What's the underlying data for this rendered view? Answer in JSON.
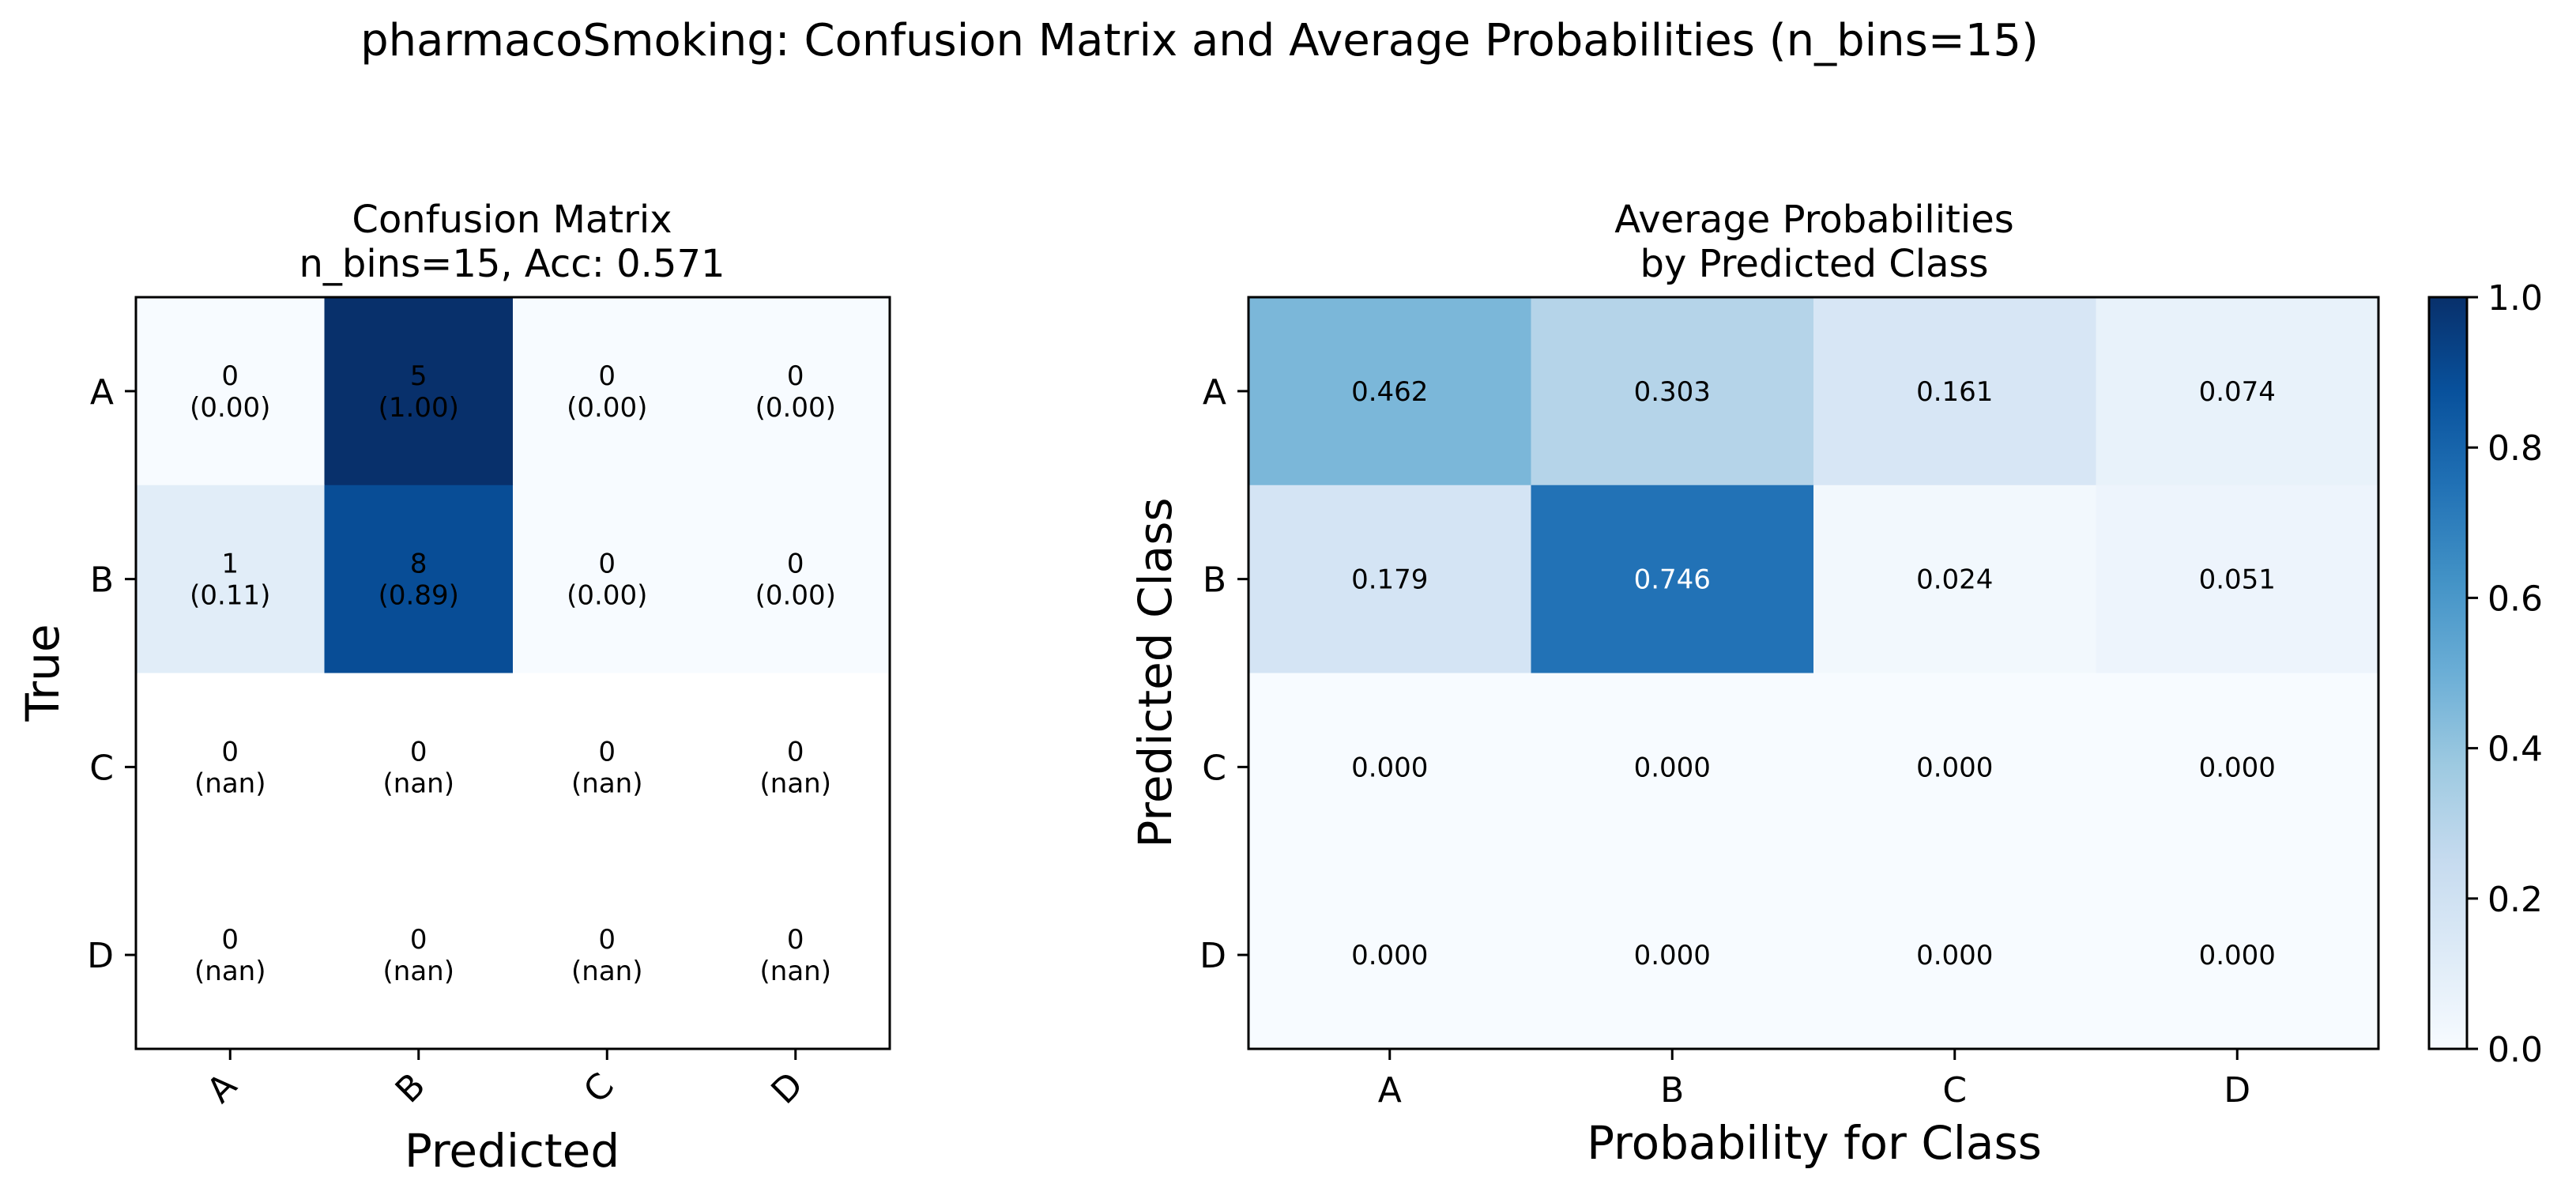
{
  "suptitle": "pharmacoSmoking: Confusion Matrix and Average Probabilities (n_bins=15)",
  "colors": {
    "colormap": "Blues",
    "cmap_low": "#f7fbff",
    "cmap_high": "#08306b",
    "dark_text_threshold": 0.5,
    "text_light": "#ffffff",
    "text_dark": "#000000"
  },
  "chart_data": [
    {
      "type": "heatmap",
      "title_line1": "Confusion Matrix",
      "title_line2": "n_bins=15, Acc: 0.571",
      "xlabel": "Predicted",
      "ylabel": "True",
      "x_categories": [
        "A",
        "B",
        "C",
        "D"
      ],
      "y_categories": [
        "A",
        "B",
        "C",
        "D"
      ],
      "x_tick_rotation": "45 degrees",
      "counts": [
        [
          0,
          5,
          0,
          0
        ],
        [
          1,
          8,
          0,
          0
        ],
        [
          0,
          0,
          0,
          0
        ],
        [
          0,
          0,
          0,
          0
        ]
      ],
      "normalized_labels": [
        [
          "0.00",
          "1.00",
          "0.00",
          "0.00"
        ],
        [
          "0.11",
          "0.89",
          "0.00",
          "0.00"
        ],
        [
          "nan",
          "nan",
          "nan",
          "nan"
        ],
        [
          "nan",
          "nan",
          "nan",
          "nan"
        ]
      ],
      "color_values": [
        [
          0.0,
          1.0,
          0.0,
          0.0
        ],
        [
          0.11,
          0.89,
          0.0,
          0.0
        ],
        [
          null,
          null,
          null,
          null
        ],
        [
          null,
          null,
          null,
          null
        ]
      ],
      "text_color": "#000000"
    },
    {
      "type": "heatmap",
      "title_line1": "Average Probabilities",
      "title_line2": "by Predicted Class",
      "xlabel": "Probability for Class",
      "ylabel": "Predicted Class",
      "x_categories": [
        "A",
        "B",
        "C",
        "D"
      ],
      "y_categories": [
        "A",
        "B",
        "C",
        "D"
      ],
      "values": [
        [
          0.462,
          0.303,
          0.161,
          0.074
        ],
        [
          0.179,
          0.746,
          0.024,
          0.051
        ],
        [
          0.0,
          0.0,
          0.0,
          0.0
        ],
        [
          0.0,
          0.0,
          0.0,
          0.0
        ]
      ],
      "value_labels": [
        [
          "0.462",
          "0.303",
          "0.161",
          "0.074"
        ],
        [
          "0.179",
          "0.746",
          "0.024",
          "0.051"
        ],
        [
          "0.000",
          "0.000",
          "0.000",
          "0.000"
        ],
        [
          "0.000",
          "0.000",
          "0.000",
          "0.000"
        ]
      ],
      "colorbar": {
        "range": [
          0.0,
          1.0
        ],
        "ticks": [
          0.0,
          0.2,
          0.4,
          0.6,
          0.8,
          1.0
        ],
        "tick_labels": [
          "0.0",
          "0.2",
          "0.4",
          "0.6",
          "0.8",
          "1.0"
        ]
      }
    }
  ]
}
